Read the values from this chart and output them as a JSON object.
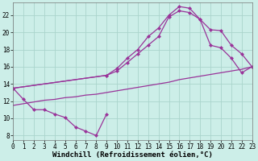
{
  "bg_color": "#cceee8",
  "grid_color": "#aad4cc",
  "line_color": "#993399",
  "line_width": 0.9,
  "marker": "D",
  "marker_size": 2.5,
  "xlabel": "Windchill (Refroidissement éolien,°C)",
  "xlabel_fontsize": 6.5,
  "tick_fontsize": 5.5,
  "xlim": [
    0,
    23
  ],
  "ylim": [
    7.5,
    23.5
  ],
  "yticks": [
    8,
    10,
    12,
    14,
    16,
    18,
    20,
    22
  ],
  "xticks": [
    0,
    1,
    2,
    3,
    4,
    5,
    6,
    7,
    8,
    9,
    10,
    11,
    12,
    13,
    14,
    15,
    16,
    17,
    18,
    19,
    20,
    21,
    22,
    23
  ],
  "curve_jagged_x": [
    0,
    1,
    2,
    3,
    4,
    5,
    6,
    7,
    8,
    9
  ],
  "curve_jagged_y": [
    13.5,
    12.2,
    11.0,
    11.0,
    10.5,
    10.1,
    9.0,
    8.5,
    8.0,
    10.5
  ],
  "curve_diag_x": [
    0,
    1,
    2,
    3,
    4,
    5,
    6,
    7,
    8,
    9,
    10,
    11,
    12,
    13,
    14,
    15,
    16,
    17,
    18,
    19,
    20,
    21,
    22,
    23
  ],
  "curve_diag_y": [
    11.5,
    11.7,
    11.9,
    12.1,
    12.2,
    12.4,
    12.5,
    12.7,
    12.8,
    13.0,
    13.2,
    13.4,
    13.6,
    13.8,
    14.0,
    14.2,
    14.5,
    14.7,
    14.9,
    15.1,
    15.3,
    15.5,
    15.7,
    16.0
  ],
  "curve_upper1_x": [
    0,
    9,
    10,
    11,
    12,
    13,
    14,
    15,
    16,
    17,
    18,
    19,
    20,
    21,
    22,
    23
  ],
  "curve_upper1_y": [
    13.5,
    15.0,
    15.5,
    16.5,
    17.5,
    18.5,
    19.5,
    21.8,
    22.5,
    22.3,
    21.5,
    18.5,
    18.2,
    17.0,
    15.3,
    16.0
  ],
  "curve_upper2_x": [
    0,
    9,
    10,
    11,
    12,
    13,
    14,
    15,
    16,
    17,
    18,
    19,
    20,
    21,
    22,
    23
  ],
  "curve_upper2_y": [
    13.5,
    15.0,
    15.8,
    17.0,
    18.0,
    19.5,
    20.5,
    22.0,
    23.0,
    22.8,
    21.5,
    20.3,
    20.2,
    18.5,
    17.5,
    16.0
  ]
}
